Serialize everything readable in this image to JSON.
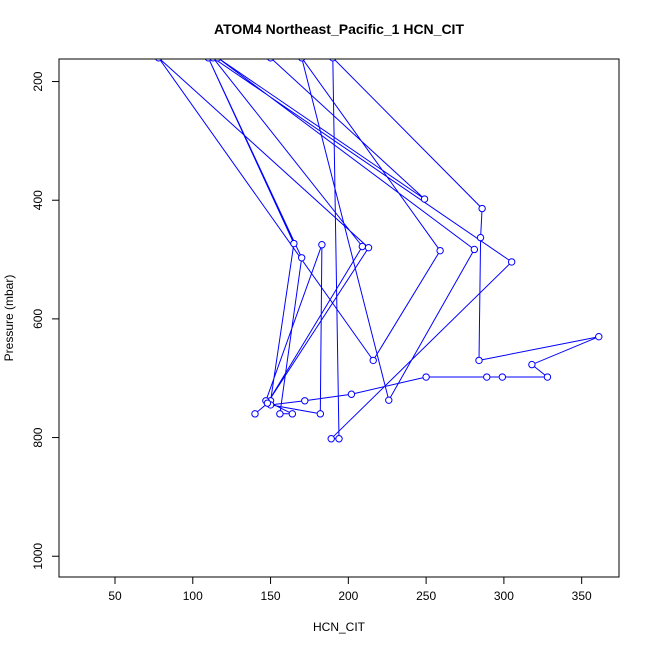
{
  "chart_data": {
    "type": "line",
    "title": "ATOM4 Northeast_Pacific_1 HCN_CIT",
    "xlabel": "HCN_CIT",
    "ylabel": "Pressure (mbar)",
    "xlim": [
      14,
      374
    ],
    "ylim": [
      1035,
      162
    ],
    "y_axis_reversed": true,
    "x_ticks": [
      50,
      100,
      150,
      200,
      250,
      300,
      350
    ],
    "y_ticks": [
      200,
      400,
      600,
      800,
      1000
    ],
    "grid": false,
    "legend": "none",
    "series_color": "#0000ff",
    "marker": "open-circle",
    "points": [
      {
        "x": 140,
        "y": 760
      },
      {
        "x": 150,
        "y": 738
      },
      {
        "x": 165,
        "y": 473
      },
      {
        "x": 110,
        "y": 160
      },
      {
        "x": 170,
        "y": 497
      },
      {
        "x": 156,
        "y": 760
      },
      {
        "x": 164,
        "y": 760
      },
      {
        "x": 147,
        "y": 738
      },
      {
        "x": 183,
        "y": 475
      },
      {
        "x": 182,
        "y": 760
      },
      {
        "x": 150,
        "y": 745
      },
      {
        "x": 172,
        "y": 738
      },
      {
        "x": 202,
        "y": 727
      },
      {
        "x": 250,
        "y": 698
      },
      {
        "x": 299,
        "y": 698
      },
      {
        "x": 289,
        "y": 698
      },
      {
        "x": 328,
        "y": 698
      },
      {
        "x": 318,
        "y": 677
      },
      {
        "x": 361,
        "y": 630
      },
      {
        "x": 284,
        "y": 670
      },
      {
        "x": 285,
        "y": 463
      },
      {
        "x": 286,
        "y": 414
      },
      {
        "x": 190,
        "y": 160
      },
      {
        "x": 194,
        "y": 802
      },
      {
        "x": 189,
        "y": 802
      },
      {
        "x": 305,
        "y": 504
      },
      {
        "x": 113,
        "y": 160
      },
      {
        "x": 209,
        "y": 478
      },
      {
        "x": 148,
        "y": 742
      },
      {
        "x": 213,
        "y": 480
      },
      {
        "x": 78,
        "y": 160
      },
      {
        "x": 216,
        "y": 670
      },
      {
        "x": 259,
        "y": 485
      },
      {
        "x": 170,
        "y": 160
      },
      {
        "x": 226,
        "y": 737
      },
      {
        "x": 281,
        "y": 483
      },
      {
        "x": 116,
        "y": 160
      },
      {
        "x": 249,
        "y": 398
      },
      {
        "x": 150,
        "y": 160
      }
    ]
  }
}
